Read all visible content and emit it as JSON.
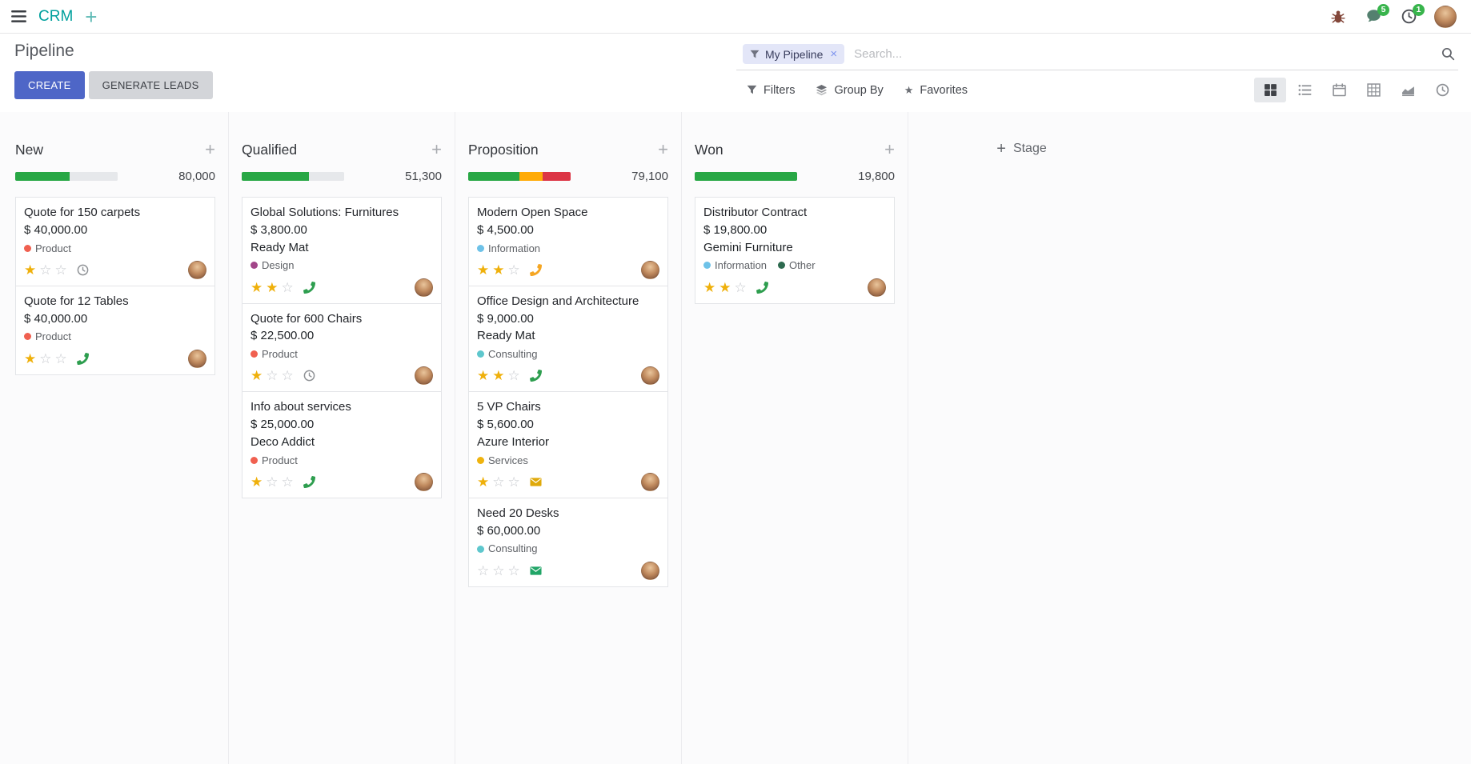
{
  "navbar": {
    "app_name": "CRM",
    "messages_badge": "5",
    "activities_badge": "1"
  },
  "icons": {
    "add": "+",
    "close": "×",
    "star_filled": "★",
    "star_empty": "☆",
    "favorites_star": "★"
  },
  "control_panel": {
    "breadcrumb": "Pipeline",
    "create_button": "CREATE",
    "generate_leads_button": "GENERATE LEADS",
    "filters": "Filters",
    "group_by": "Group By",
    "favorites": "Favorites",
    "search_facet": "My Pipeline",
    "search_placeholder": "Search...",
    "view_switcher": [
      "kanban",
      "list",
      "calendar",
      "pivot",
      "graph",
      "activity"
    ],
    "active_view": "kanban"
  },
  "colors": {
    "brand_teal": "#00a09d",
    "primary_button": "#4e66c7",
    "progress_green": "#28a745",
    "progress_yellow": "#ffab07",
    "progress_red": "#dc3545",
    "star_gold": "#efb00b",
    "badge_green": "#38b44c"
  },
  "board": {
    "add_stage": "Stage",
    "columns": [
      {
        "title": "New",
        "total": "80,000",
        "progress": [
          {
            "color": "#28a745",
            "pct": 53
          },
          {
            "color": "#e6e8eb",
            "pct": 47
          }
        ],
        "cards": [
          {
            "title": "Quote for 150 carpets",
            "amount": "$ 40,000.00",
            "partner": "",
            "tags": [
              {
                "label": "Product",
                "color": "#f06050"
              }
            ],
            "stars": 1,
            "activity": {
              "type": "clock",
              "color": "#8f9296"
            }
          },
          {
            "title": "Quote for 12 Tables",
            "amount": "$ 40,000.00",
            "partner": "",
            "tags": [
              {
                "label": "Product",
                "color": "#f06050"
              }
            ],
            "stars": 1,
            "activity": {
              "type": "phone",
              "color": "#2e9e4f"
            }
          }
        ]
      },
      {
        "title": "Qualified",
        "total": "51,300",
        "progress": [
          {
            "color": "#28a745",
            "pct": 66
          },
          {
            "color": "#e6e8eb",
            "pct": 34
          }
        ],
        "cards": [
          {
            "title": "Global Solutions: Furnitures",
            "amount": "$ 3,800.00",
            "partner": "Ready Mat",
            "tags": [
              {
                "label": "Design",
                "color": "#a24689"
              }
            ],
            "stars": 2,
            "activity": {
              "type": "phone",
              "color": "#2e9e4f"
            }
          },
          {
            "title": "Quote for 600 Chairs",
            "amount": "$ 22,500.00",
            "partner": "",
            "tags": [
              {
                "label": "Product",
                "color": "#f06050"
              }
            ],
            "stars": 1,
            "activity": {
              "type": "clock",
              "color": "#8f9296"
            }
          },
          {
            "title": "Info about services",
            "amount": "$ 25,000.00",
            "partner": "Deco Addict",
            "tags": [
              {
                "label": "Product",
                "color": "#f06050"
              }
            ],
            "stars": 1,
            "activity": {
              "type": "phone",
              "color": "#2e9e4f"
            }
          }
        ]
      },
      {
        "title": "Proposition",
        "total": "79,100",
        "progress": [
          {
            "color": "#28a745",
            "pct": 50
          },
          {
            "color": "#ffab07",
            "pct": 23
          },
          {
            "color": "#dc3545",
            "pct": 27
          }
        ],
        "cards": [
          {
            "title": "Modern Open Space",
            "amount": "$ 4,500.00",
            "partner": "",
            "tags": [
              {
                "label": "Information",
                "color": "#6ec2e8"
              }
            ],
            "stars": 2,
            "activity": {
              "type": "phone",
              "color": "#f5a623"
            }
          },
          {
            "title": "Office Design and Architecture",
            "amount": "$ 9,000.00",
            "partner": "Ready Mat",
            "tags": [
              {
                "label": "Consulting",
                "color": "#5ec7cd"
              }
            ],
            "stars": 2,
            "activity": {
              "type": "phone",
              "color": "#2e9e4f"
            }
          },
          {
            "title": "5 VP Chairs",
            "amount": "$ 5,600.00",
            "partner": "Azure Interior",
            "tags": [
              {
                "label": "Services",
                "color": "#efb30e"
              }
            ],
            "stars": 1,
            "activity": {
              "type": "mail",
              "color": "#dfa90a"
            }
          },
          {
            "title": "Need 20 Desks",
            "amount": "$ 60,000.00",
            "partner": "",
            "tags": [
              {
                "label": "Consulting",
                "color": "#5ec7cd"
              }
            ],
            "stars": 0,
            "activity": {
              "type": "mail",
              "color": "#21a567"
            }
          }
        ]
      },
      {
        "title": "Won",
        "total": "19,800",
        "progress": [
          {
            "color": "#28a745",
            "pct": 100
          }
        ],
        "cards": [
          {
            "title": "Distributor Contract",
            "amount": "$ 19,800.00",
            "partner": "Gemini Furniture",
            "tags": [
              {
                "label": "Information",
                "color": "#6ec2e8"
              },
              {
                "label": "Other",
                "color": "#2d6a4f"
              }
            ],
            "stars": 2,
            "activity": {
              "type": "phone",
              "color": "#2e9e4f"
            }
          }
        ]
      }
    ]
  }
}
